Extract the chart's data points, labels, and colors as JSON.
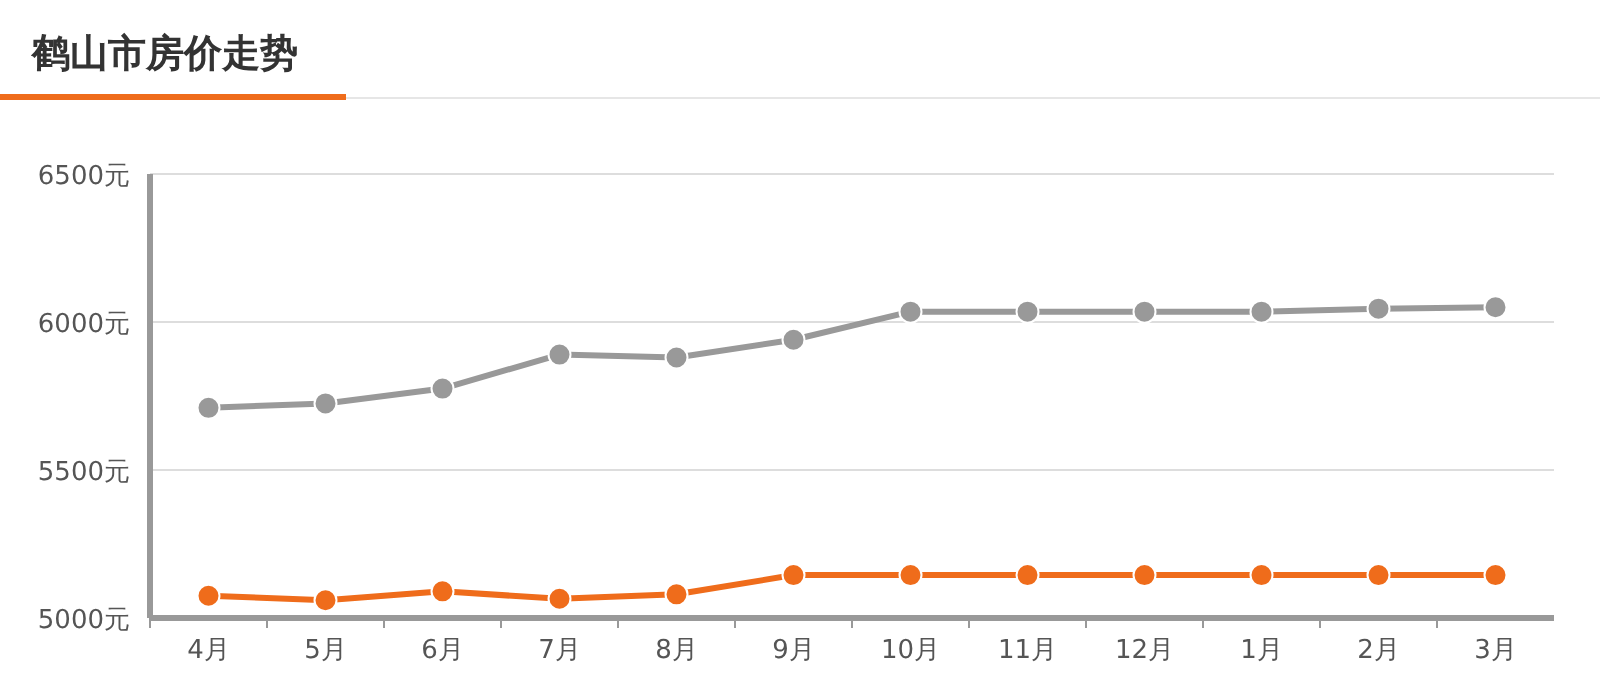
{
  "chart_data": {
    "type": "line",
    "title": "鹤山市房价走势",
    "categories": [
      "4月",
      "5月",
      "6月",
      "7月",
      "8月",
      "9月",
      "10月",
      "11月",
      "12月",
      "1月",
      "2月",
      "3月"
    ],
    "series": [
      {
        "color": "#999999",
        "values": [
          5710,
          5725,
          5775,
          5890,
          5880,
          5940,
          6035,
          6035,
          6035,
          6035,
          6045,
          6050
        ]
      },
      {
        "color": "#ef6c1b",
        "values": [
          5075,
          5060,
          5090,
          5065,
          5080,
          5145,
          5145,
          5145,
          5145,
          5145,
          5145,
          5145
        ]
      }
    ],
    "ylim": [
      5000,
      6500
    ],
    "yticks": [
      {
        "value": 5000,
        "label": "5000元"
      },
      {
        "value": 5500,
        "label": "5500元"
      },
      {
        "value": 6000,
        "label": "6000元"
      },
      {
        "value": 6500,
        "label": "6500元"
      }
    ],
    "grid": "y",
    "marker": "circle",
    "line_style": "solid"
  }
}
